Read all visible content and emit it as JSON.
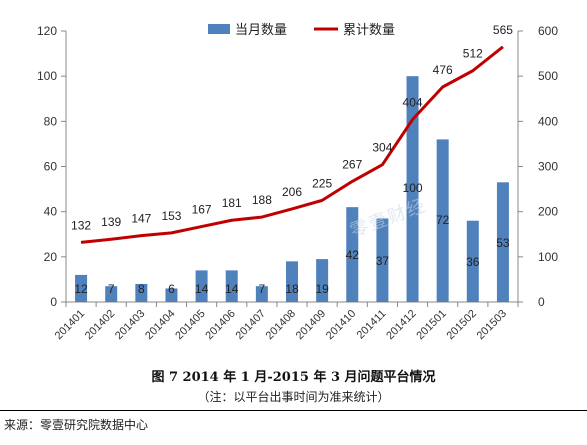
{
  "chart_data": {
    "type": "bar+line",
    "categories": [
      "201401",
      "201402",
      "201403",
      "201404",
      "201405",
      "201406",
      "201407",
      "201408",
      "201409",
      "201410",
      "201411",
      "201412",
      "201501",
      "201502",
      "201503"
    ],
    "series": [
      {
        "name": "当月数量",
        "type": "bar",
        "axis": "left",
        "color": "#4f81bd",
        "values": [
          12,
          7,
          8,
          6,
          14,
          14,
          7,
          18,
          19,
          42,
          37,
          100,
          72,
          36,
          53
        ]
      },
      {
        "name": "累计数量",
        "type": "line",
        "axis": "right",
        "color": "#c00000",
        "values": [
          132,
          139,
          147,
          153,
          167,
          181,
          188,
          206,
          225,
          267,
          304,
          404,
          476,
          512,
          565
        ]
      }
    ],
    "y_left": {
      "min": 0,
      "max": 120,
      "ticks": [
        0,
        20,
        40,
        60,
        80,
        100,
        120
      ]
    },
    "y_right": {
      "min": 0,
      "max": 600,
      "ticks": [
        0,
        100,
        200,
        300,
        400,
        500,
        600
      ]
    },
    "grid": false,
    "legend": "top"
  },
  "caption": {
    "title": "图 7   2014 年 1 月-2015 年 3 月问题平台情况",
    "note": "（注：以平台出事时间为准来统计）"
  },
  "source": "来源：零壹研究院数据中心",
  "watermark": "零壹财经"
}
